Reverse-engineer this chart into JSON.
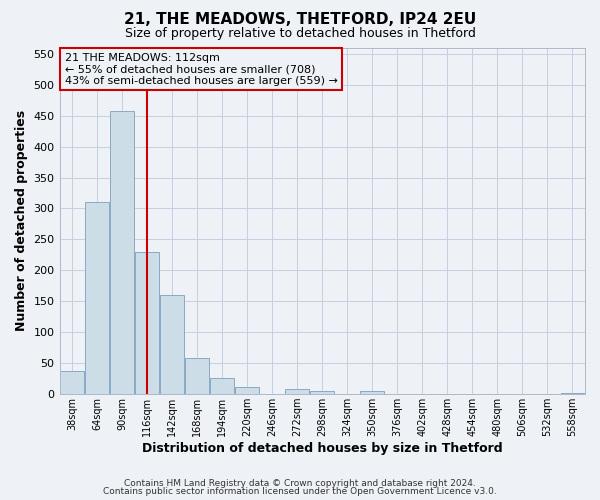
{
  "title1": "21, THE MEADOWS, THETFORD, IP24 2EU",
  "title2": "Size of property relative to detached houses in Thetford",
  "xlabel": "Distribution of detached houses by size in Thetford",
  "ylabel": "Number of detached properties",
  "bin_labels": [
    "38sqm",
    "64sqm",
    "90sqm",
    "116sqm",
    "142sqm",
    "168sqm",
    "194sqm",
    "220sqm",
    "246sqm",
    "272sqm",
    "298sqm",
    "324sqm",
    "350sqm",
    "376sqm",
    "402sqm",
    "428sqm",
    "454sqm",
    "480sqm",
    "506sqm",
    "532sqm",
    "558sqm"
  ],
  "bin_values": [
    38,
    311,
    457,
    230,
    160,
    58,
    26,
    12,
    0,
    9,
    5,
    0,
    5,
    0,
    0,
    0,
    0,
    0,
    0,
    0,
    2
  ],
  "bar_color": "#ccdde8",
  "bar_edgecolor": "#88aac4",
  "property_line_x": 3,
  "annotation_title": "21 THE MEADOWS: 112sqm",
  "annotation_line1": "← 55% of detached houses are smaller (708)",
  "annotation_line2": "43% of semi-detached houses are larger (559) →",
  "vline_color": "#cc0000",
  "annotation_box_edgecolor": "#cc0000",
  "ylim": [
    0,
    560
  ],
  "yticks": [
    0,
    50,
    100,
    150,
    200,
    250,
    300,
    350,
    400,
    450,
    500,
    550
  ],
  "footer1": "Contains HM Land Registry data © Crown copyright and database right 2024.",
  "footer2": "Contains public sector information licensed under the Open Government Licence v3.0.",
  "background_color": "#eef2f7",
  "grid_color": "#c5cfe0"
}
